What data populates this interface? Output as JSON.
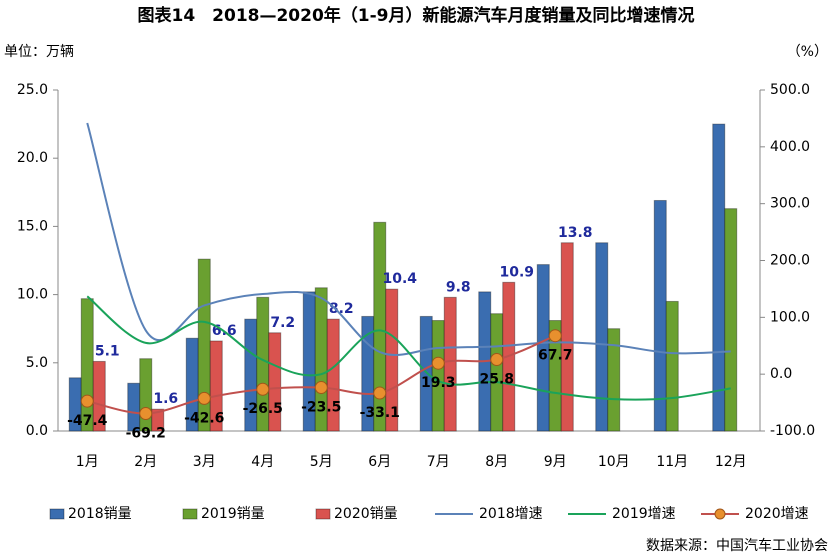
{
  "chart_data": {
    "type": "bar",
    "title": "图表14　2018—2020年（1-9月）新能源汽车月度销量及同比增速情况",
    "y_label": "单位：万辆",
    "y2_label": "（%）",
    "source": "数据来源：中国汽车工业协会",
    "categories": [
      "1月",
      "2月",
      "3月",
      "4月",
      "5月",
      "6月",
      "7月",
      "8月",
      "9月",
      "10月",
      "11月",
      "12月"
    ],
    "ylim": [
      0,
      25
    ],
    "yticks": [
      {
        "value": 0,
        "label": "0.0"
      },
      {
        "value": 5,
        "label": "5.0"
      },
      {
        "value": 10,
        "label": "10.0"
      },
      {
        "value": 15,
        "label": "15.0"
      },
      {
        "value": 20,
        "label": "20.0"
      },
      {
        "value": 25,
        "label": "25.0"
      }
    ],
    "y2lim": [
      -100,
      500
    ],
    "y2ticks": [
      {
        "value": -100,
        "label": "-100.0"
      },
      {
        "value": 0,
        "label": "0.0"
      },
      {
        "value": 100,
        "label": "100.0"
      },
      {
        "value": 200,
        "label": "200.0"
      },
      {
        "value": 300,
        "label": "300.0"
      },
      {
        "value": 400,
        "label": "400.0"
      },
      {
        "value": 500,
        "label": "500.0"
      }
    ],
    "grid": false,
    "legend": "bottom",
    "series": [
      {
        "name": "2018销量",
        "type": "bar",
        "color": "#3a6db0",
        "values": [
          3.9,
          3.5,
          6.8,
          8.2,
          10.2,
          8.4,
          8.4,
          10.2,
          12.2,
          13.8,
          16.9,
          22.5
        ]
      },
      {
        "name": "2019销量",
        "type": "bar",
        "color": "#6aa030",
        "values": [
          9.7,
          5.3,
          12.6,
          9.8,
          10.5,
          15.3,
          8.1,
          8.6,
          8.1,
          7.5,
          9.5,
          16.3
        ]
      },
      {
        "name": "2020销量",
        "type": "bar",
        "color": "#d9534f",
        "values": [
          5.1,
          1.6,
          6.6,
          7.2,
          8.2,
          10.4,
          9.8,
          10.9,
          13.8,
          null,
          null,
          null
        ],
        "show_labels": true
      },
      {
        "name": "2018增速",
        "type": "line",
        "axis": "y2",
        "color": "#5b82b8",
        "values": [
          442,
          77,
          121,
          141,
          134,
          39,
          46,
          49,
          56,
          51,
          37,
          40
        ]
      },
      {
        "name": "2019增速",
        "type": "line",
        "axis": "y2",
        "color": "#1aa35a",
        "values": [
          137,
          55,
          92,
          25,
          0,
          77,
          -12,
          -14,
          -33,
          -44,
          -42,
          -25
        ]
      },
      {
        "name": "2020增速",
        "type": "line",
        "axis": "y2",
        "color": "#c0504d",
        "marker_color": "#e8902e",
        "values": [
          -47.4,
          -69.2,
          -42.6,
          -26.5,
          -23.5,
          -33.1,
          19.3,
          25.8,
          67.7,
          null,
          null,
          null
        ],
        "show_labels": true
      }
    ]
  }
}
